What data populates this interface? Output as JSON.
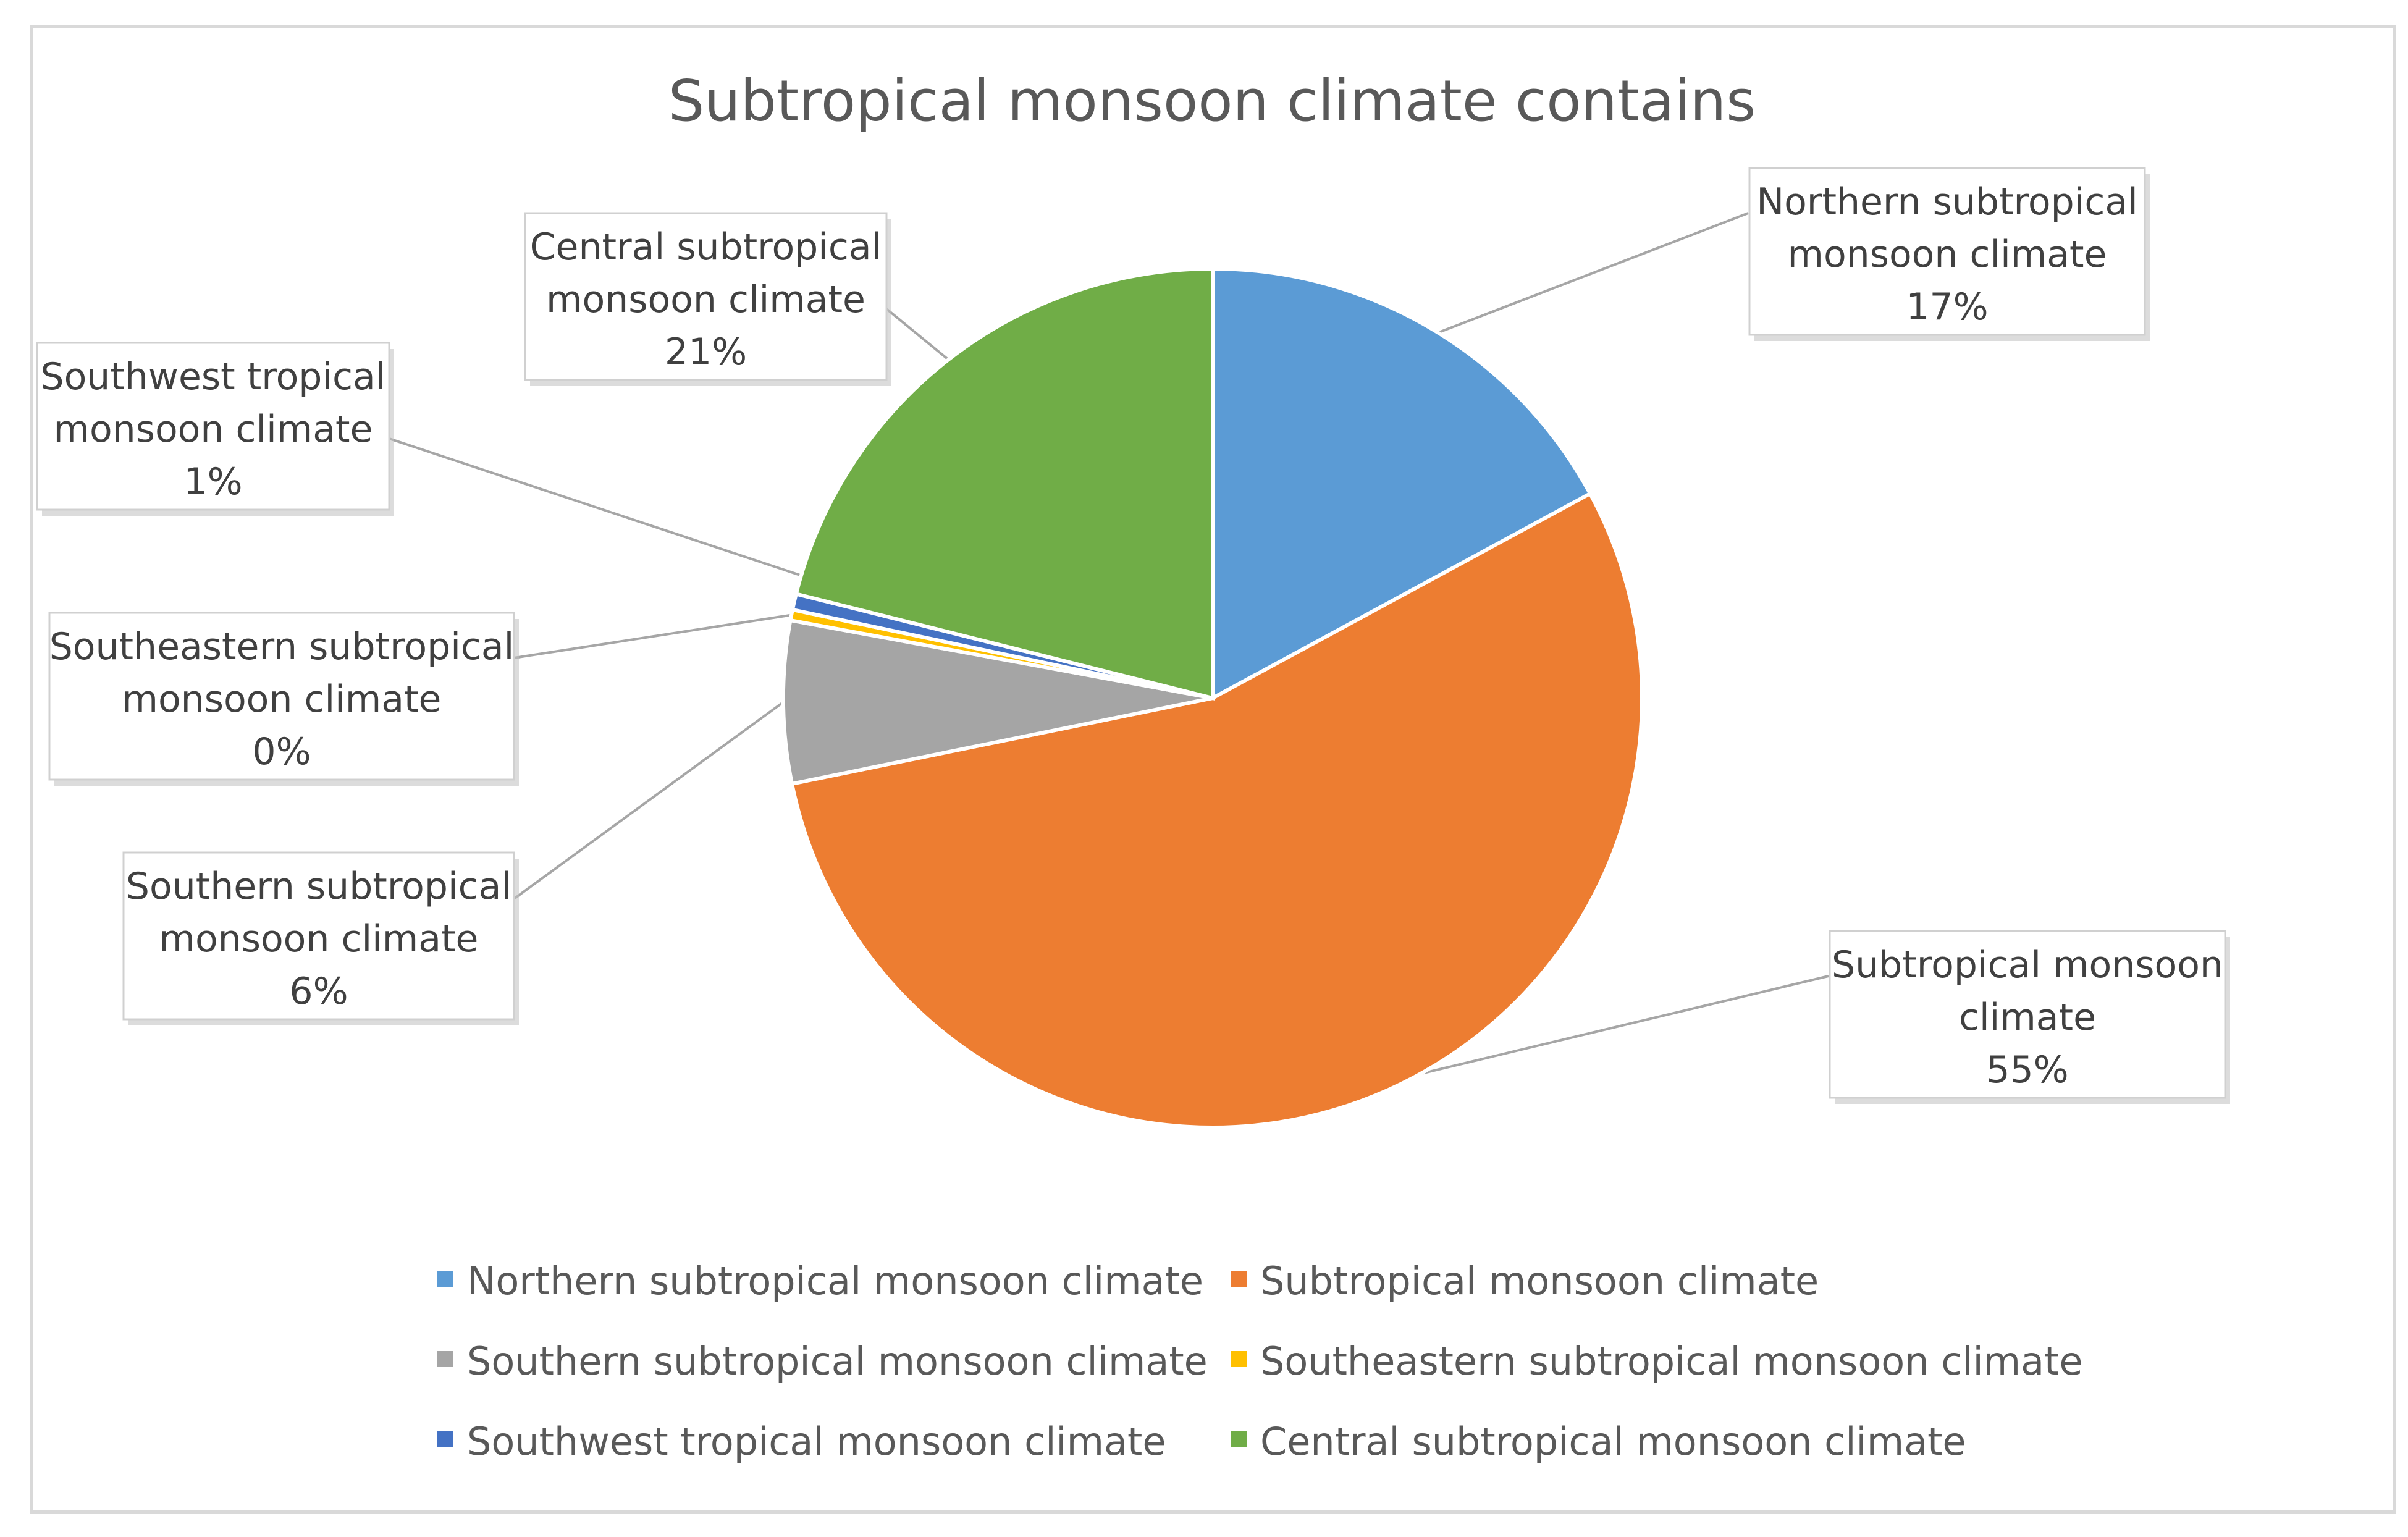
{
  "chart_data": {
    "type": "pie",
    "title": "Subtropical monsoon climate contains",
    "slices": [
      {
        "label": "Northern subtropical monsoon climate",
        "percent_label": "17%",
        "value": 17.1,
        "color": "#5B9BD5",
        "callout": [
          "Northern subtropical",
          "monsoon climate",
          "17%"
        ]
      },
      {
        "label": "Subtropical monsoon climate",
        "percent_label": "55%",
        "value": 54.7,
        "color": "#ED7D31",
        "callout": [
          "Subtropical monsoon",
          "climate",
          "55%"
        ]
      },
      {
        "label": "Southern subtropical monsoon climate",
        "percent_label": "6%",
        "value": 6.1,
        "color": "#A5A5A5",
        "callout": [
          "Southern subtropical",
          "monsoon climate",
          "6%"
        ]
      },
      {
        "label": "Southeastern subtropical monsoon climate",
        "percent_label": "0%",
        "value": 0.4,
        "color": "#FFC000",
        "callout": [
          "Southeastern subtropical",
          "monsoon climate",
          "0%"
        ]
      },
      {
        "label": "Southwest tropical monsoon climate",
        "percent_label": "1%",
        "value": 0.6,
        "color": "#4472C4",
        "callout": [
          "Southwest tropical",
          "monsoon climate",
          "1%"
        ]
      },
      {
        "label": "Central subtropical monsoon climate",
        "percent_label": "21%",
        "value": 21.1,
        "color": "#70AD47",
        "callout": [
          "Central subtropical",
          "monsoon climate",
          "21%"
        ]
      }
    ],
    "legend_position": "bottom",
    "legend": [
      "Northern subtropical monsoon climate",
      "Subtropical monsoon climate",
      "Southern subtropical monsoon climate",
      "Southeastern subtropical monsoon climate",
      "Southwest tropical monsoon climate",
      "Central subtropical monsoon climate"
    ]
  }
}
